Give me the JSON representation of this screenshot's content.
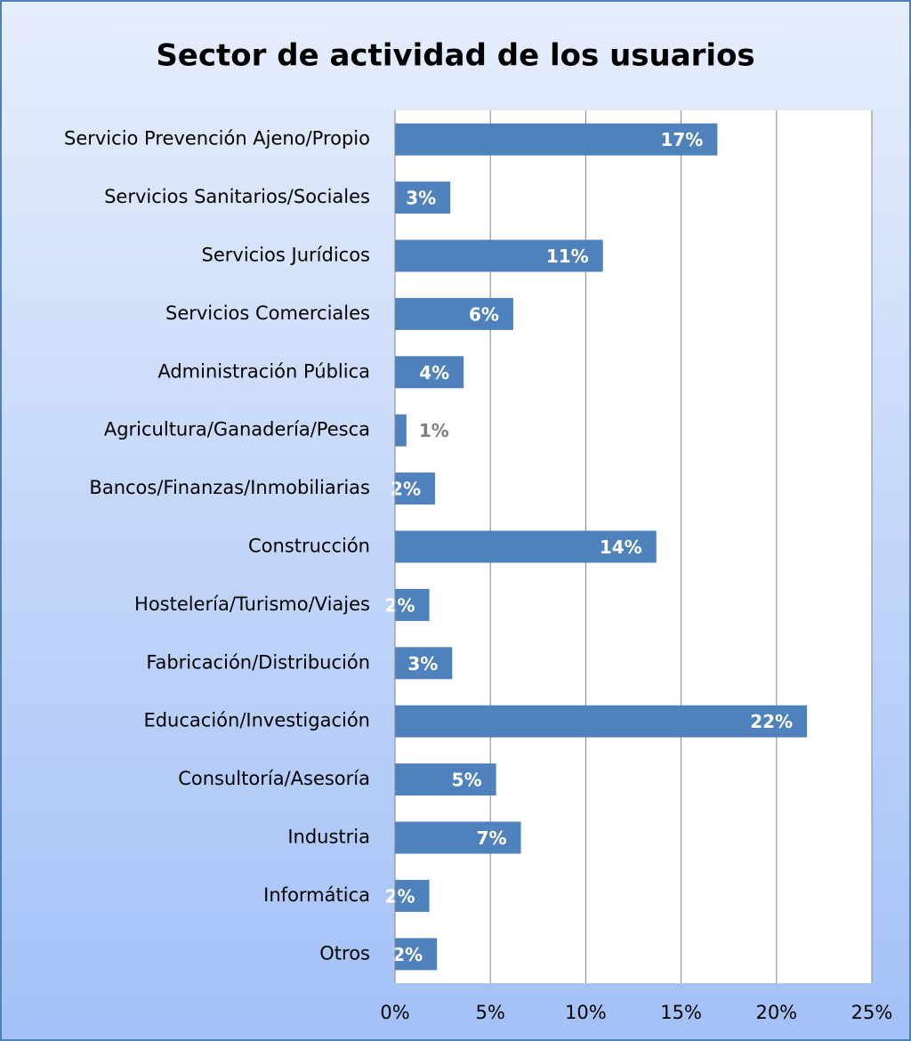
{
  "chart_data": {
    "type": "hbar",
    "title": "Sector de actividad de los usuarios",
    "categories": [
      "Servicio Prevención Ajeno/Propio",
      "Servicios Sanitarios/Sociales",
      "Servicios Jurídicos",
      "Servicios Comerciales",
      "Administración Pública",
      "Agricultura/Ganadería/Pesca",
      "Bancos/Finanzas/Inmobiliarias",
      "Construcción",
      "Hostelería/Turismo/Viajes",
      "Fabricación/Distribución",
      "Educación/Investigación",
      "Consultoría/Asesoría",
      "Industria",
      "Informática",
      "Otros"
    ],
    "values": [
      16.9,
      2.9,
      10.9,
      6.2,
      3.6,
      0.6,
      2.1,
      13.7,
      1.8,
      3.0,
      21.6,
      5.3,
      6.6,
      1.8,
      2.2
    ],
    "value_labels": [
      "17%",
      "3%",
      "11%",
      "6%",
      "4%",
      "1%",
      "2%",
      "14%",
      "2%",
      "3%",
      "22%",
      "5%",
      "7%",
      "2%",
      "2%"
    ],
    "color": "#4f81bd",
    "xlim": [
      0,
      25
    ],
    "xticks": [
      {
        "value": 0,
        "label": "0%"
      },
      {
        "value": 5,
        "label": "5%"
      },
      {
        "value": 10,
        "label": "10%"
      },
      {
        "value": 15,
        "label": "15%"
      },
      {
        "value": 20,
        "label": "20%"
      },
      {
        "value": 25,
        "label": "25%"
      }
    ],
    "grid": true
  }
}
